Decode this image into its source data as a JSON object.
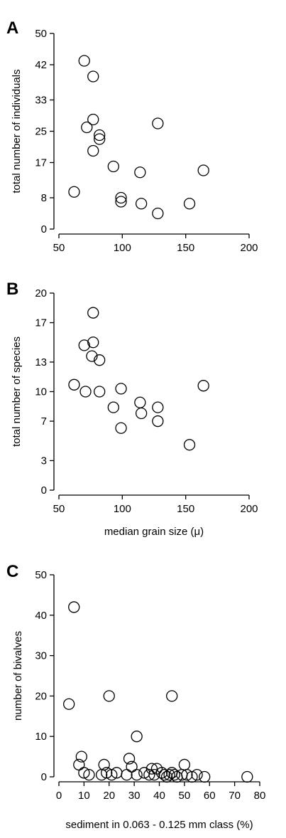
{
  "chart_data": [
    {
      "panel": "A",
      "type": "scatter",
      "title": "",
      "xlabel": "",
      "ylabel": "total number of individuals",
      "xlim": [
        50,
        200
      ],
      "ylim": [
        0,
        50
      ],
      "xticks": [
        50,
        100,
        150,
        200
      ],
      "yticks": [
        0,
        8,
        17,
        25,
        33,
        42,
        50
      ],
      "grid": false,
      "legend": "none",
      "points": [
        {
          "x": 70,
          "y": 43
        },
        {
          "x": 77,
          "y": 39
        },
        {
          "x": 77,
          "y": 28
        },
        {
          "x": 72,
          "y": 26
        },
        {
          "x": 82,
          "y": 24
        },
        {
          "x": 82,
          "y": 23
        },
        {
          "x": 77,
          "y": 20
        },
        {
          "x": 128,
          "y": 27
        },
        {
          "x": 93,
          "y": 16
        },
        {
          "x": 114,
          "y": 14.5
        },
        {
          "x": 164,
          "y": 15
        },
        {
          "x": 62,
          "y": 9.5
        },
        {
          "x": 99,
          "y": 8
        },
        {
          "x": 99,
          "y": 7
        },
        {
          "x": 115,
          "y": 6.5
        },
        {
          "x": 153,
          "y": 6.5
        },
        {
          "x": 128,
          "y": 4
        }
      ]
    },
    {
      "panel": "B",
      "type": "scatter",
      "title": "",
      "xlabel": "median grain size (μ)",
      "ylabel": "total number of species",
      "xlim": [
        50,
        200
      ],
      "ylim": [
        0,
        20
      ],
      "xticks": [
        50,
        100,
        150,
        200
      ],
      "yticks": [
        0,
        3,
        7,
        10,
        13,
        17,
        20
      ],
      "grid": false,
      "legend": "none",
      "points": [
        {
          "x": 77,
          "y": 18
        },
        {
          "x": 77,
          "y": 15
        },
        {
          "x": 70,
          "y": 14.7
        },
        {
          "x": 76,
          "y": 13.6
        },
        {
          "x": 82,
          "y": 13.2
        },
        {
          "x": 62,
          "y": 10.7
        },
        {
          "x": 71,
          "y": 10
        },
        {
          "x": 82,
          "y": 10
        },
        {
          "x": 99,
          "y": 10.3
        },
        {
          "x": 164,
          "y": 10.6
        },
        {
          "x": 114,
          "y": 8.9
        },
        {
          "x": 93,
          "y": 8.4
        },
        {
          "x": 128,
          "y": 8.4
        },
        {
          "x": 115,
          "y": 7.8
        },
        {
          "x": 128,
          "y": 7
        },
        {
          "x": 99,
          "y": 6.3
        },
        {
          "x": 153,
          "y": 4.6
        }
      ]
    },
    {
      "panel": "C",
      "type": "scatter",
      "title": "",
      "xlabel": "sediment in 0.063 - 0.125 mm class (%)",
      "ylabel": "number of bivalves",
      "xlim": [
        0,
        80
      ],
      "ylim": [
        0,
        50
      ],
      "xticks": [
        0,
        10,
        20,
        30,
        40,
        50,
        60,
        70,
        80
      ],
      "yticks": [
        0,
        10,
        20,
        30,
        40,
        50
      ],
      "grid": false,
      "legend": "none",
      "points": [
        {
          "x": 6,
          "y": 42
        },
        {
          "x": 4,
          "y": 18
        },
        {
          "x": 20,
          "y": 20
        },
        {
          "x": 45,
          "y": 20
        },
        {
          "x": 31,
          "y": 10
        },
        {
          "x": 9,
          "y": 5
        },
        {
          "x": 28,
          "y": 4.5
        },
        {
          "x": 8,
          "y": 3
        },
        {
          "x": 18,
          "y": 3
        },
        {
          "x": 29,
          "y": 2.5
        },
        {
          "x": 50,
          "y": 3
        },
        {
          "x": 37,
          "y": 2
        },
        {
          "x": 39,
          "y": 2
        },
        {
          "x": 10,
          "y": 1
        },
        {
          "x": 12,
          "y": 0.5
        },
        {
          "x": 17,
          "y": 0.5
        },
        {
          "x": 19,
          "y": 1
        },
        {
          "x": 21,
          "y": 0.5
        },
        {
          "x": 23,
          "y": 1
        },
        {
          "x": 27,
          "y": 0.5
        },
        {
          "x": 31,
          "y": 0.5
        },
        {
          "x": 34,
          "y": 1
        },
        {
          "x": 36,
          "y": 0.5
        },
        {
          "x": 38,
          "y": 0.5
        },
        {
          "x": 41,
          "y": 1
        },
        {
          "x": 42,
          "y": 0.5
        },
        {
          "x": 43,
          "y": 0
        },
        {
          "x": 44,
          "y": 0.5
        },
        {
          "x": 45,
          "y": 1
        },
        {
          "x": 46,
          "y": 0.5
        },
        {
          "x": 47,
          "y": 0
        },
        {
          "x": 49,
          "y": 0.5
        },
        {
          "x": 51,
          "y": 0.5
        },
        {
          "x": 53,
          "y": 0
        },
        {
          "x": 55,
          "y": 0.5
        },
        {
          "x": 58,
          "y": 0
        },
        {
          "x": 75,
          "y": 0
        }
      ]
    }
  ]
}
